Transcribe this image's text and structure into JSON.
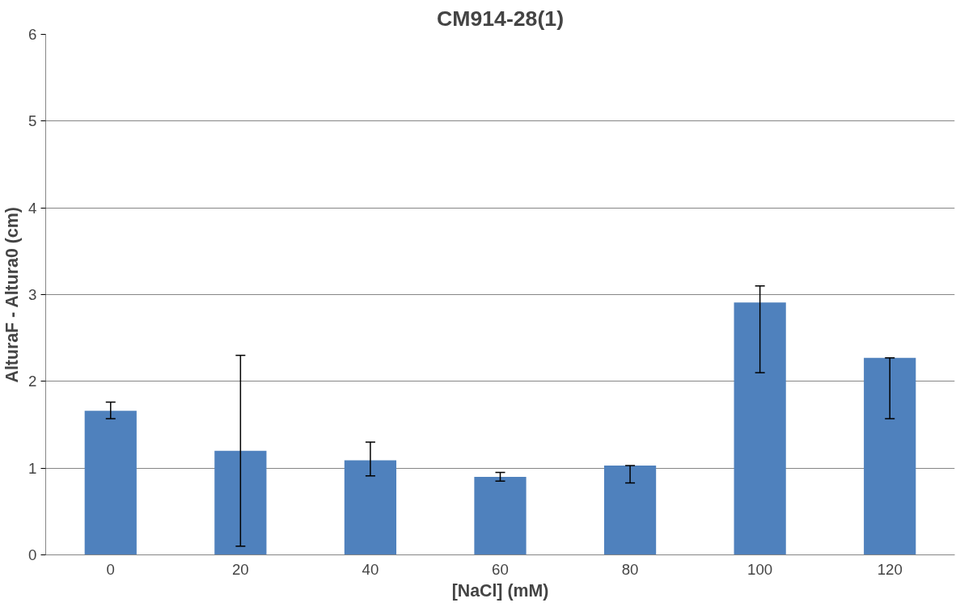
{
  "chart_data": {
    "type": "bar",
    "title": "CM914-28(1)",
    "xlabel": "[NaCl] (mM)",
    "ylabel": "AlturaF - Altura0 (cm)",
    "categories": [
      "0",
      "20",
      "40",
      "60",
      "80",
      "100",
      "120"
    ],
    "series": [
      {
        "color": "#4f81bd",
        "values": [
          1.66,
          1.2,
          1.09,
          0.9,
          1.03,
          2.91,
          2.27
        ],
        "errors": [
          [
            1.57,
            1.76
          ],
          [
            0.1,
            2.3
          ],
          [
            0.91,
            1.3
          ],
          [
            0.85,
            0.95
          ],
          [
            0.83,
            1.03
          ],
          [
            2.1,
            3.1
          ],
          [
            1.57,
            2.27
          ]
        ]
      }
    ],
    "ylim": [
      0,
      6
    ],
    "yticks": [
      0,
      1,
      2,
      3,
      4,
      5,
      6
    ],
    "grid": "y"
  }
}
